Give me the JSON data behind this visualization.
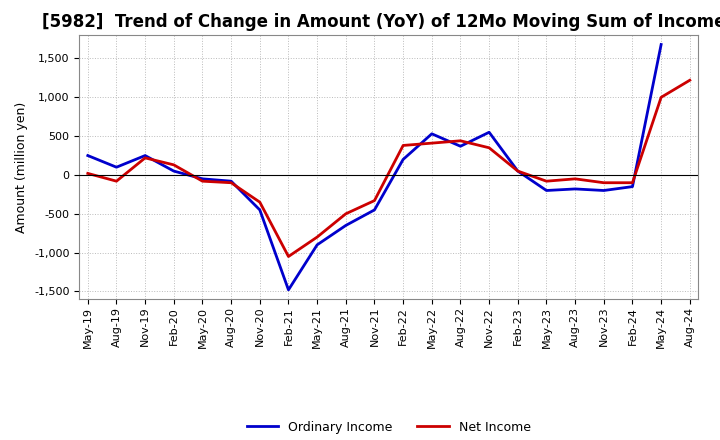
{
  "title": "[5982]  Trend of Change in Amount (YoY) of 12Mo Moving Sum of Incomes",
  "ylabel": "Amount (million yen)",
  "ylim": [
    -1600,
    1800
  ],
  "yticks": [
    -1500,
    -1000,
    -500,
    0,
    500,
    1000,
    1500
  ],
  "background_color": "#ffffff",
  "grid_color": "#bbbbbb",
  "ordinary_income_color": "#0000cc",
  "net_income_color": "#cc0000",
  "x_labels": [
    "May-19",
    "Aug-19",
    "Nov-19",
    "Feb-20",
    "May-20",
    "Aug-20",
    "Nov-20",
    "Feb-21",
    "May-21",
    "Aug-21",
    "Nov-21",
    "Feb-22",
    "May-22",
    "Aug-22",
    "Nov-22",
    "Feb-23",
    "May-23",
    "Aug-23",
    "Nov-23",
    "Feb-24",
    "May-24",
    "Aug-24"
  ],
  "ordinary_income": [
    250,
    100,
    250,
    50,
    -50,
    -80,
    -450,
    -1480,
    -900,
    -650,
    -450,
    200,
    530,
    370,
    550,
    50,
    -200,
    -180,
    -200,
    -150,
    1680,
    null
  ],
  "net_income": [
    20,
    -80,
    220,
    130,
    -80,
    -100,
    -350,
    -1050,
    -800,
    -500,
    -330,
    380,
    410,
    440,
    350,
    50,
    -80,
    -50,
    -100,
    -100,
    1000,
    1220
  ],
  "legend_labels": [
    "Ordinary Income",
    "Net Income"
  ],
  "line_width": 2.0,
  "title_fontsize": 12,
  "ylabel_fontsize": 9,
  "tick_fontsize": 8
}
